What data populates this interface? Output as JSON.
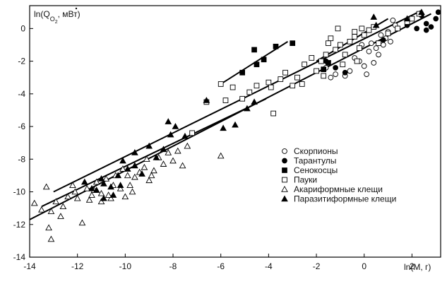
{
  "chart_data": {
    "type": "scatter",
    "title": "",
    "ylabel_pre": "ln(",
    "ylabel_sym": "Q",
    "ylabel_sub": "O",
    "ylabel_sub2": "2",
    "ylabel_post": ", мВт)",
    "xlabel": "ln(M, г)",
    "xlim": [
      -14,
      3.2
    ],
    "ylim": [
      -14,
      1.4
    ],
    "xticks": [
      -14,
      -12,
      -10,
      -8,
      -6,
      -4,
      -2,
      0,
      2
    ],
    "yticks": [
      0,
      -2,
      -4,
      -6,
      -8,
      -10,
      -12,
      -14
    ],
    "legend_position": "right",
    "series": [
      {
        "name": "Скорпионы",
        "marker": "circle-open",
        "points": [
          [
            -1.6,
            -2.4
          ],
          [
            -1.2,
            -2.8
          ],
          [
            -0.9,
            -2.2
          ],
          [
            -0.6,
            -2.6
          ],
          [
            -0.4,
            -1.8
          ],
          [
            -0.2,
            -2.0
          ],
          [
            0.0,
            -2.3
          ],
          [
            0.2,
            -1.4
          ],
          [
            0.3,
            -0.9
          ],
          [
            0.5,
            -1.2
          ],
          [
            0.6,
            -1.6
          ],
          [
            0.8,
            -1.0
          ],
          [
            1.0,
            -0.2
          ],
          [
            1.2,
            0.5
          ],
          [
            -0.1,
            -1.0
          ],
          [
            0.4,
            -2.1
          ],
          [
            0.9,
            -0.6
          ],
          [
            1.1,
            -0.8
          ],
          [
            -0.8,
            -2.9
          ],
          [
            0.1,
            -2.8
          ],
          [
            0.7,
            -0.4
          ],
          [
            1.3,
            0.2
          ],
          [
            -1.4,
            -3.0
          ]
        ]
      },
      {
        "name": "Тарантулы",
        "marker": "circle-filled",
        "points": [
          [
            1.8,
            0.2
          ],
          [
            2.2,
            0.0
          ],
          [
            2.4,
            0.8
          ],
          [
            2.6,
            0.3
          ],
          [
            2.8,
            0.1
          ],
          [
            3.0,
            0.6
          ],
          [
            3.1,
            1.0
          ],
          [
            -1.6,
            -2.0
          ],
          [
            -1.2,
            -2.4
          ],
          [
            -0.8,
            -2.7
          ],
          [
            0.8,
            -0.7
          ],
          [
            2.6,
            -0.1
          ]
        ]
      },
      {
        "name": "Сенокосцы",
        "marker": "square-filled",
        "points": [
          [
            -5.1,
            -2.7
          ],
          [
            -4.6,
            -1.3
          ],
          [
            -4.2,
            -1.9
          ],
          [
            -3.7,
            -1.1
          ],
          [
            -3.0,
            -0.9
          ],
          [
            -1.7,
            -2.5
          ],
          [
            -1.5,
            -2.1
          ],
          [
            -4.5,
            -2.2
          ]
        ]
      },
      {
        "name": "Пауки",
        "marker": "square-open",
        "points": [
          [
            -7.2,
            -6.4
          ],
          [
            -6.6,
            -4.5
          ],
          [
            -6.0,
            -3.4
          ],
          [
            -5.5,
            -3.6
          ],
          [
            -5.1,
            -4.3
          ],
          [
            -4.5,
            -3.5
          ],
          [
            -4.0,
            -3.3
          ],
          [
            -3.8,
            -5.2
          ],
          [
            -3.5,
            -3.1
          ],
          [
            -3.3,
            -2.7
          ],
          [
            -3.0,
            -3.5
          ],
          [
            -2.8,
            -3.0
          ],
          [
            -2.5,
            -2.2
          ],
          [
            -2.2,
            -1.8
          ],
          [
            -2.0,
            -2.6
          ],
          [
            -1.8,
            -2.0
          ],
          [
            -1.6,
            -1.6
          ],
          [
            -1.4,
            -0.6
          ],
          [
            -1.2,
            -1.3
          ],
          [
            -1.0,
            -1.0
          ],
          [
            -0.8,
            -1.6
          ],
          [
            -0.6,
            -0.8
          ],
          [
            -0.4,
            -0.5
          ],
          [
            -0.2,
            -1.2
          ],
          [
            0.0,
            -0.4
          ],
          [
            0.2,
            -0.1
          ],
          [
            0.4,
            0.1
          ],
          [
            0.6,
            -0.9
          ],
          [
            1.0,
            -0.3
          ],
          [
            1.4,
            0.0
          ],
          [
            1.8,
            0.4
          ],
          [
            2.0,
            0.6
          ],
          [
            2.3,
            0.9
          ],
          [
            -1.5,
            -0.9
          ],
          [
            -0.9,
            -2.2
          ],
          [
            -0.3,
            -2.0
          ],
          [
            -2.6,
            -3.4
          ],
          [
            -4.8,
            -3.9
          ],
          [
            -5.8,
            -4.4
          ],
          [
            -1.7,
            -2.9
          ],
          [
            -0.1,
            0.0
          ],
          [
            -3.9,
            -3.6
          ],
          [
            -1.1,
            0.0
          ],
          [
            -0.4,
            -0.2
          ]
        ]
      },
      {
        "name": "Акариформные клещи",
        "marker": "triangle-open",
        "points": [
          [
            -13.8,
            -10.7
          ],
          [
            -13.5,
            -11.1
          ],
          [
            -13.3,
            -9.7
          ],
          [
            -13.1,
            -11.2
          ],
          [
            -12.9,
            -10.6
          ],
          [
            -12.6,
            -10.9
          ],
          [
            -12.4,
            -10.3
          ],
          [
            -12.2,
            -9.6
          ],
          [
            -12.0,
            -10.4
          ],
          [
            -11.8,
            -11.9
          ],
          [
            -11.6,
            -9.8
          ],
          [
            -11.4,
            -10.2
          ],
          [
            -11.2,
            -9.4
          ],
          [
            -11.0,
            -10.1
          ],
          [
            -10.8,
            -9.2
          ],
          [
            -10.6,
            -10.4
          ],
          [
            -10.4,
            -9.0
          ],
          [
            -10.2,
            -9.8
          ],
          [
            -10.0,
            -10.3
          ],
          [
            -9.8,
            -9.6
          ],
          [
            -9.6,
            -9.1
          ],
          [
            -9.4,
            -8.8
          ],
          [
            -9.2,
            -8.5
          ],
          [
            -9.0,
            -9.3
          ],
          [
            -8.8,
            -8.7
          ],
          [
            -8.6,
            -7.9
          ],
          [
            -8.4,
            -8.3
          ],
          [
            -8.2,
            -7.6
          ],
          [
            -8.0,
            -8.1
          ],
          [
            -7.8,
            -7.5
          ],
          [
            -7.6,
            -8.4
          ],
          [
            -7.4,
            -7.2
          ],
          [
            -13.2,
            -12.2
          ],
          [
            -13.1,
            -12.9
          ],
          [
            -12.7,
            -11.5
          ],
          [
            -11.0,
            -10.6
          ],
          [
            -10.5,
            -9.6
          ],
          [
            -9.9,
            -9.0
          ],
          [
            -9.1,
            -8.0
          ],
          [
            -6.0,
            -7.8
          ],
          [
            -10.1,
            -8.6
          ],
          [
            -11.3,
            -9.9
          ],
          [
            -12.1,
            -10.0
          ],
          [
            -8.9,
            -9.0
          ],
          [
            -9.7,
            -10.0
          ],
          [
            -10.7,
            -10.2
          ],
          [
            -11.5,
            -10.5
          ]
        ]
      },
      {
        "name": "Паразитиформные клещи",
        "marker": "triangle-filled",
        "points": [
          [
            -11.7,
            -9.4
          ],
          [
            -11.2,
            -9.9
          ],
          [
            -10.9,
            -10.4
          ],
          [
            -10.6,
            -9.7
          ],
          [
            -10.3,
            -9.0
          ],
          [
            -10.1,
            -8.1
          ],
          [
            -9.9,
            -8.6
          ],
          [
            -9.6,
            -8.4
          ],
          [
            -9.3,
            -8.9
          ],
          [
            -9.0,
            -7.2
          ],
          [
            -8.7,
            -7.9
          ],
          [
            -8.4,
            -7.4
          ],
          [
            -8.1,
            -6.5
          ],
          [
            -7.9,
            -6.0
          ],
          [
            -7.5,
            -6.6
          ],
          [
            -9.6,
            -7.6
          ],
          [
            -8.2,
            -5.7
          ],
          [
            -6.6,
            -4.4
          ],
          [
            -5.9,
            -6.1
          ],
          [
            -5.4,
            -5.9
          ],
          [
            -4.9,
            -4.9
          ],
          [
            -4.6,
            -4.5
          ],
          [
            -10.5,
            -10.2
          ],
          [
            -10.9,
            -9.5
          ],
          [
            0.4,
            0.7
          ],
          [
            1.8,
            0.6
          ],
          [
            2.4,
            1.0
          ],
          [
            0.5,
            0.2
          ],
          [
            -11.4,
            -9.8
          ],
          [
            -10.2,
            -9.6
          ],
          [
            -11.0,
            -9.2
          ]
        ]
      }
    ],
    "fit_lines": [
      {
        "x": [
          -13.5,
          -4.1
        ],
        "y": [
          -10.9,
          -4.3
        ]
      },
      {
        "x": [
          -14.0,
          2.8
        ],
        "y": [
          -11.7,
          0.9
        ]
      },
      {
        "x": [
          -13.0,
          2.4
        ],
        "y": [
          -10.0,
          1.1
        ]
      },
      {
        "x": [
          -6.0,
          -3.2
        ],
        "y": [
          -3.4,
          -0.8
        ]
      },
      {
        "x": [
          -2.0,
          1.0
        ],
        "y": [
          -2.0,
          0.6
        ]
      }
    ]
  }
}
